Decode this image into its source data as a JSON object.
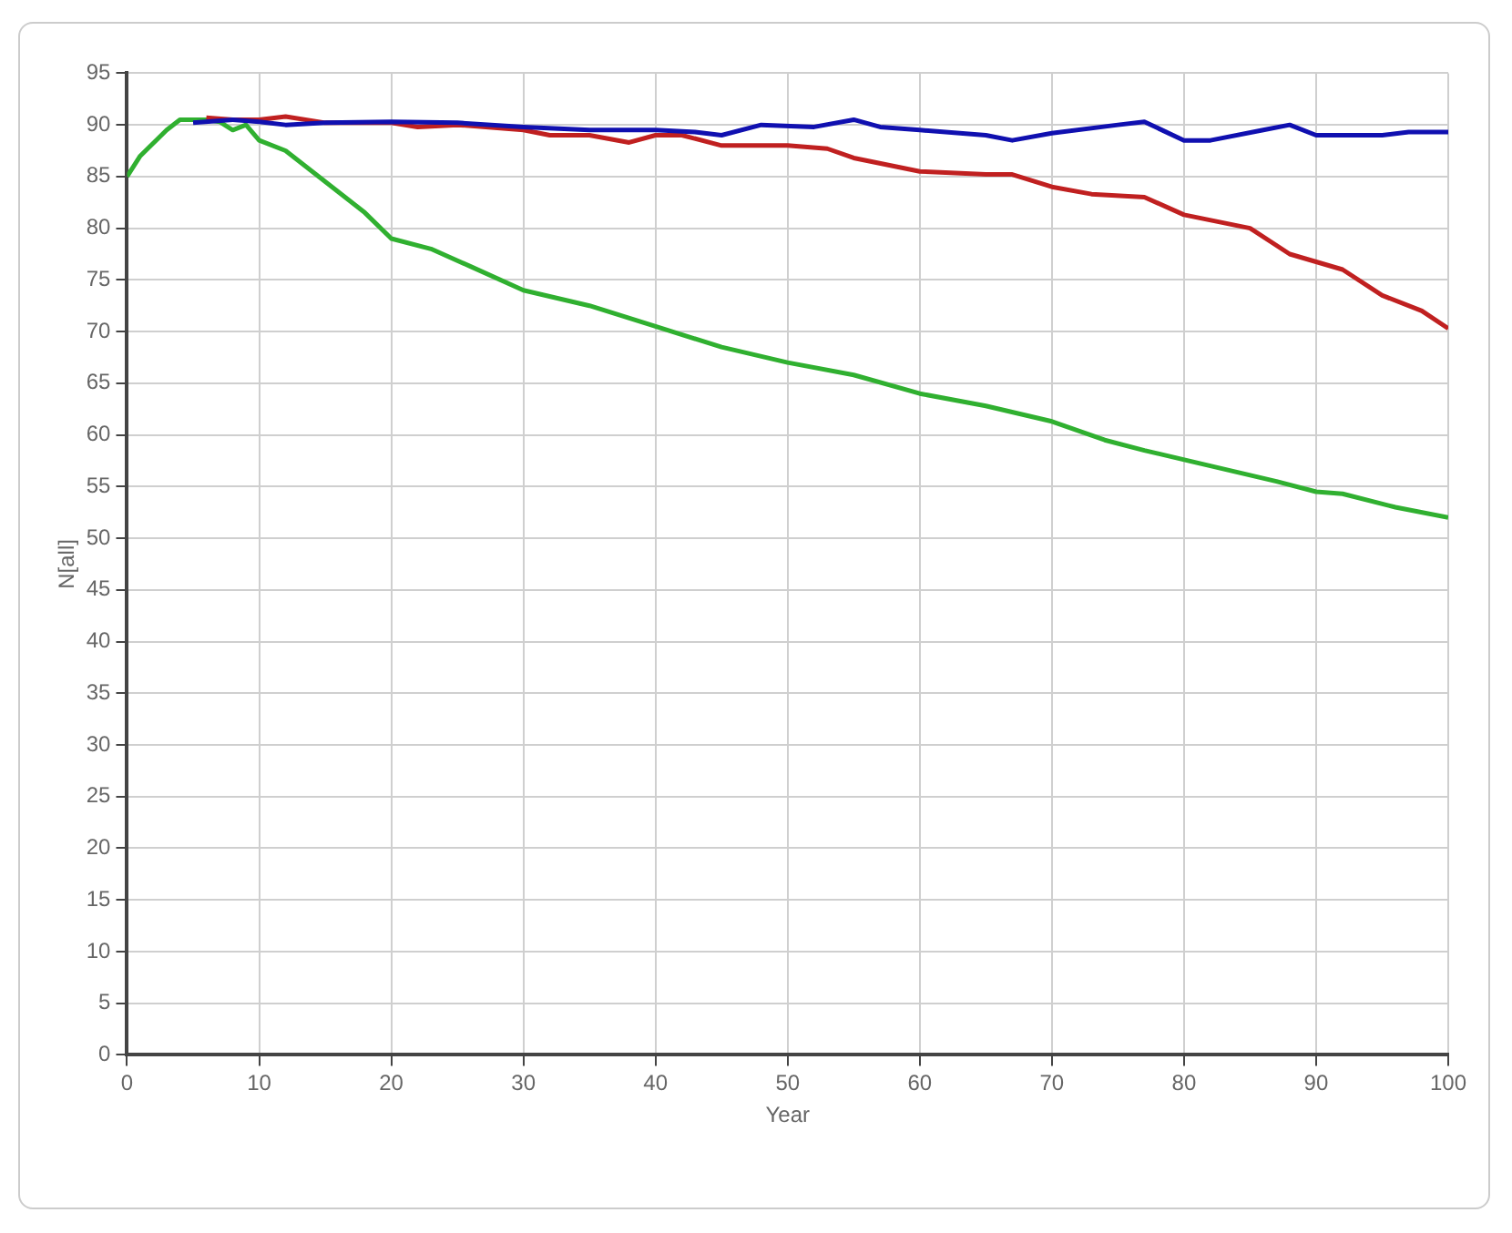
{
  "chart_data": {
    "type": "line",
    "xlabel": "Year",
    "ylabel": "N[all]",
    "xlim": [
      0,
      100
    ],
    "xticks": [
      0,
      10,
      20,
      30,
      40,
      50,
      60,
      70,
      80,
      90,
      100
    ],
    "ylim": [
      0,
      95
    ],
    "yticks": [
      0,
      5,
      10,
      15,
      20,
      25,
      30,
      35,
      40,
      45,
      50,
      55,
      60,
      65,
      70,
      75,
      80,
      85,
      90,
      95
    ],
    "grid": true,
    "legend": false,
    "marker": "none",
    "line_style": "solid",
    "series": [
      {
        "color": "#1010b0",
        "x": [
          5,
          8,
          10,
          12,
          15,
          20,
          25,
          30,
          35,
          40,
          43,
          45,
          48,
          52,
          55,
          57,
          60,
          65,
          67,
          70,
          75,
          77,
          80,
          82,
          86,
          88,
          90,
          95,
          97,
          100
        ],
        "values": [
          90.2,
          90.5,
          90.3,
          90,
          90.2,
          90.3,
          90.2,
          89.8,
          89.5,
          89.5,
          89.3,
          89,
          90,
          89.8,
          90.5,
          89.8,
          89.5,
          89,
          88.5,
          89.2,
          90,
          90.3,
          88.5,
          88.5,
          89.5,
          90,
          89,
          89,
          89.3,
          89.3
        ]
      },
      {
        "color": "#c02020",
        "x": [
          6,
          8,
          10,
          12,
          15,
          20,
          22,
          25,
          30,
          32,
          35,
          38,
          40,
          42,
          45,
          50,
          53,
          55,
          60,
          65,
          67,
          70,
          73,
          77,
          80,
          85,
          88,
          92,
          95,
          98,
          100
        ],
        "values": [
          90.7,
          90.5,
          90.5,
          90.8,
          90.2,
          90.2,
          89.8,
          90,
          89.5,
          89,
          89,
          88.3,
          89,
          89,
          88,
          88,
          87.7,
          86.8,
          85.5,
          85.2,
          85.2,
          84,
          83.3,
          83,
          81.3,
          80,
          77.5,
          76,
          73.5,
          72,
          70.3
        ]
      },
      {
        "color": "#30b030",
        "x": [
          0,
          1,
          3,
          4,
          6,
          7,
          8,
          9,
          10,
          12,
          15,
          18,
          20,
          23,
          26,
          30,
          35,
          40,
          45,
          50,
          55,
          60,
          65,
          70,
          74,
          77,
          82,
          87,
          90,
          92,
          96,
          100
        ],
        "values": [
          85,
          87,
          89.5,
          90.5,
          90.5,
          90.3,
          89.5,
          90,
          88.5,
          87.5,
          84.5,
          81.5,
          79,
          78,
          76.3,
          74,
          72.5,
          70.5,
          68.5,
          67,
          65.8,
          64,
          62.8,
          61.3,
          59.5,
          58.5,
          57,
          55.5,
          54.5,
          54.3,
          53,
          52
        ]
      }
    ]
  }
}
